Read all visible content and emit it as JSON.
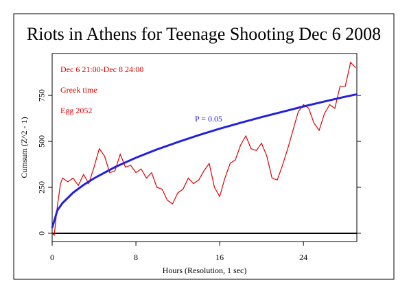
{
  "chart_data": {
    "type": "line",
    "title": "Riots in Athens for Teenage Shooting Dec 6 2008",
    "annotations": [
      "Dec 6 21:00-Dec 8 24:00",
      "Greek time",
      "Egg 2052"
    ],
    "annotation_color": "#dd0000",
    "xlabel": "Hours (Resolution, 1 sec)",
    "ylabel": "Cumsum (Z^2 - 1)",
    "xlim": [
      0,
      29.1
    ],
    "ylim": [
      -45,
      978
    ],
    "xticks": [
      0,
      8,
      16,
      24
    ],
    "yticks": [
      0,
      250,
      500,
      750
    ],
    "hline": 0,
    "series": [
      {
        "name": "Cumsum",
        "color": "#dd0000",
        "x": [
          0,
          0.2,
          0.5,
          0.8,
          1,
          1.5,
          2,
          2.5,
          3,
          3.5,
          4,
          4.5,
          5,
          5.5,
          6,
          6.5,
          7,
          7.5,
          8,
          8.5,
          9,
          9.5,
          10,
          10.5,
          11,
          11.5,
          12,
          12.5,
          13,
          13.5,
          14,
          14.5,
          15,
          15.5,
          16,
          16.5,
          17,
          17.5,
          18,
          18.5,
          19,
          19.5,
          20,
          20.5,
          21,
          21.5,
          22,
          22.5,
          23,
          23.5,
          24,
          24.5,
          25,
          25.5,
          26,
          26.5,
          27,
          27.5,
          28,
          28.5,
          29
        ],
        "values": [
          0,
          -10,
          150,
          270,
          300,
          280,
          300,
          260,
          320,
          270,
          360,
          460,
          420,
          330,
          340,
          430,
          360,
          370,
          330,
          350,
          300,
          330,
          250,
          240,
          180,
          160,
          220,
          240,
          300,
          270,
          290,
          340,
          380,
          250,
          200,
          300,
          380,
          400,
          480,
          530,
          460,
          450,
          490,
          420,
          300,
          290,
          370,
          460,
          560,
          660,
          700,
          680,
          600,
          560,
          650,
          700,
          680,
          800,
          800,
          930,
          900
        ]
      },
      {
        "name": "P = 0.05",
        "color": "#2222dd",
        "x": [
          0,
          0.5,
          1,
          2,
          3,
          4,
          6,
          8,
          10,
          12,
          14,
          16,
          18,
          20,
          22,
          24,
          26,
          28,
          29.1
        ],
        "values": [
          30,
          125,
          165,
          221,
          263,
          299,
          360,
          411,
          456,
          496,
          534,
          569,
          601,
          632,
          661,
          690,
          717,
          743,
          756
        ]
      }
    ]
  }
}
